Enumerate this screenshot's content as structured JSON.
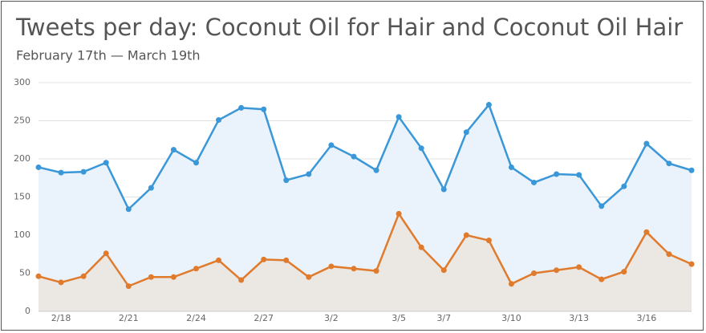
{
  "chart_data": {
    "type": "area",
    "title": "Tweets per day: Coconut Oil for Hair and Coconut Oil Hair",
    "subtitle": "February 17th — March 19th",
    "categories": [
      null,
      "2/18",
      null,
      null,
      "2/21",
      null,
      null,
      "2/24",
      null,
      null,
      "2/27",
      null,
      null,
      "3/2",
      null,
      null,
      "3/5",
      null,
      "3/7",
      null,
      null,
      "3/10",
      null,
      null,
      "3/13",
      null,
      null,
      "3/16",
      null,
      null
    ],
    "series": [
      {
        "color": "#3a97d8",
        "fill": "#eaf3fb",
        "values": [
          189,
          182,
          183,
          195,
          134,
          162,
          212,
          195,
          251,
          267,
          265,
          172,
          180,
          218,
          203,
          185,
          255,
          214,
          160,
          235,
          271,
          189,
          169,
          180,
          179,
          138,
          164,
          220,
          194,
          185
        ]
      },
      {
        "color": "#e07b2e",
        "fill": "#ebe7e3",
        "values": [
          46,
          38,
          46,
          76,
          33,
          45,
          45,
          56,
          67,
          41,
          68,
          67,
          45,
          59,
          56,
          53,
          128,
          84,
          54,
          100,
          93,
          36,
          50,
          54,
          58,
          42,
          52,
          104,
          75,
          62
        ]
      }
    ],
    "ylim": [
      0,
      300
    ],
    "yticks": [
      0,
      50,
      100,
      150,
      200,
      250,
      300
    ],
    "grid": true
  }
}
